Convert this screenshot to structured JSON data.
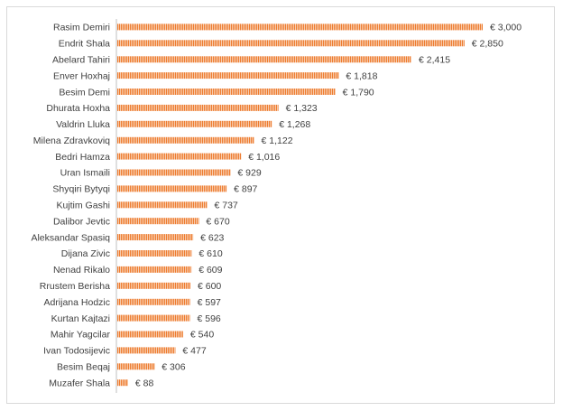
{
  "chart_data": {
    "type": "bar",
    "orientation": "horizontal",
    "currency_prefix": "€",
    "grid": false,
    "legend": "none",
    "xlim": [
      0,
      3000
    ],
    "bar_color": "#ED7D31",
    "categories": [
      "Rasim Demiri",
      "Endrit Shala",
      "Abelard Tahiri",
      "Enver Hoxhaj",
      "Besim Demi",
      "Dhurata Hoxha",
      "Valdrin Lluka",
      "Milena Zdravkoviq",
      "Bedri Hamza",
      "Uran Ismaili",
      "Shyqiri Bytyqi",
      "Kujtim Gashi",
      "Dalibor Jevtic",
      "Aleksandar Spasiq",
      "Dijana Zivic",
      "Nenad Rikalo",
      "Rrustem Berisha",
      "Adrijana Hodzic",
      "Kurtan Kajtazi",
      "Mahir Yagcilar",
      "Ivan Todosijevic",
      "Besim Beqaj",
      "Muzafer Shala"
    ],
    "values": [
      3000,
      2850,
      2415,
      1818,
      1790,
      1323,
      1268,
      1122,
      1016,
      929,
      897,
      737,
      670,
      623,
      610,
      609,
      600,
      597,
      596,
      540,
      477,
      306,
      88
    ],
    "value_labels": [
      "€ 3,000",
      "€ 2,850",
      "€ 2,415",
      "€ 1,818",
      "€ 1,790",
      "€ 1,323",
      "€ 1,268",
      "€ 1,122",
      "€ 1,016",
      "€ 929",
      "€ 897",
      "€ 737",
      "€ 670",
      "€ 623",
      "€ 610",
      "€ 609",
      "€ 600",
      "€ 597",
      "€ 596",
      "€ 540",
      "€ 477",
      "€ 306",
      "€ 88"
    ]
  }
}
